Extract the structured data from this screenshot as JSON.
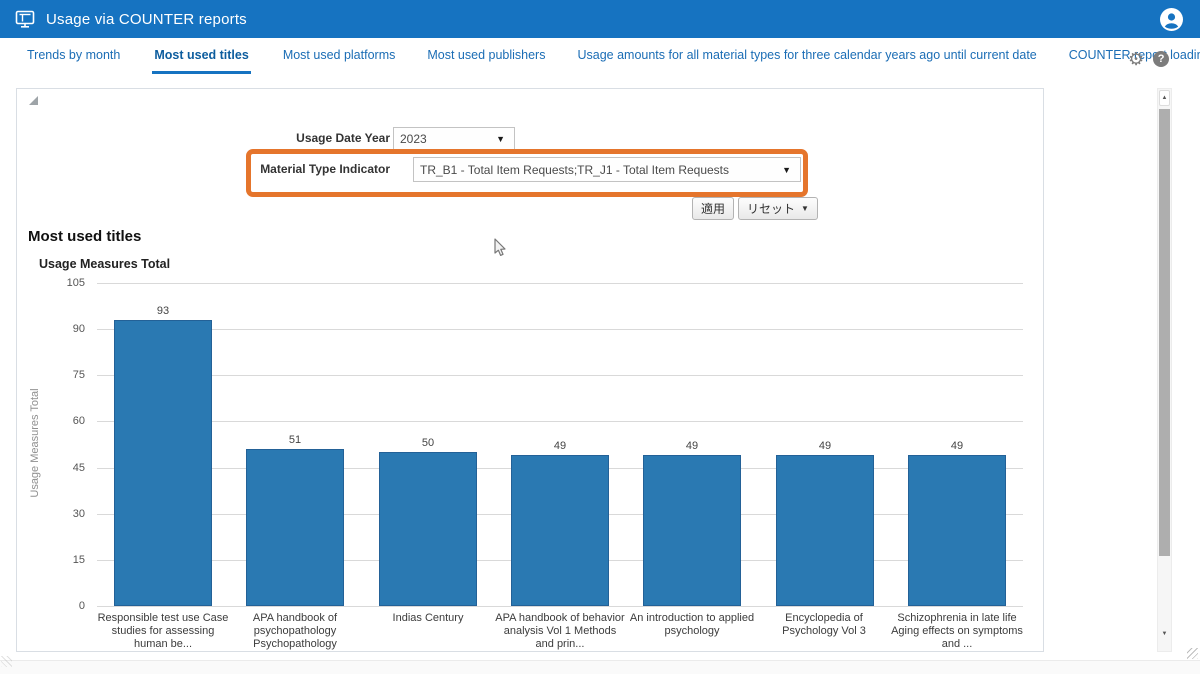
{
  "header": {
    "title": "Usage via COUNTER reports",
    "app_icon": "dashboard-monitor-icon",
    "avatar_icon": "user-avatar-icon"
  },
  "tabs": [
    {
      "label": "Trends by month",
      "active": false
    },
    {
      "label": "Most used titles",
      "active": true
    },
    {
      "label": "Most used platforms",
      "active": false
    },
    {
      "label": "Most used publishers",
      "active": false
    },
    {
      "label": "Usage amounts for all material types for three calendar years ago until current date",
      "active": false
    },
    {
      "label": "COUNTER report loading",
      "suffix": "»",
      "active": false
    }
  ],
  "toolbar": {
    "gear_icon": "settings-gear-icon",
    "gear_glyph": "⚙",
    "help_icon": "help-icon",
    "help_glyph": "?"
  },
  "filters": {
    "usage_date_year": {
      "label": "Usage Date Year",
      "value": "2023"
    },
    "material_type_indicator": {
      "label": "Material Type Indicator",
      "value": "TR_B1 - Total Item Requests;TR_J1 - Total Item Requests"
    },
    "apply_label": "適用",
    "reset_label": "リセット",
    "caret_glyph": "▼",
    "highlight_color": "#e5752c"
  },
  "section_title": "Most used titles",
  "chart_data": {
    "type": "bar",
    "title": "Usage Measures Total",
    "xlabel": "",
    "ylabel": "Usage Measures Total",
    "ylim": [
      0,
      105
    ],
    "yticks": [
      0,
      15,
      30,
      45,
      60,
      75,
      90,
      105
    ],
    "grid": true,
    "legend_position": "none",
    "bar_color": "#2a79b2",
    "categories": [
      "Responsible test use Case studies for assessing human be...",
      "APA handbook of psychopathology Psychopathology Understan...",
      "Indias Century",
      "APA handbook of behavior analysis Vol 1 Methods and prin...",
      "An introduction to applied psychology",
      "Encyclopedia of Psychology Vol 3",
      "Schizophrenia in late life Aging effects on symptoms and ..."
    ],
    "values": [
      93,
      51,
      50,
      49,
      49,
      49,
      49
    ]
  },
  "scrollbar": {
    "up_glyph": "▲",
    "down_glyph": "▼"
  },
  "colors": {
    "header_bg": "#1673c1",
    "tab_active": "#0d5d9e",
    "tab_inactive": "#1b6db5",
    "bar_fill": "#2a79b2",
    "gridline": "#d9d9d9",
    "highlight": "#e5752c"
  }
}
